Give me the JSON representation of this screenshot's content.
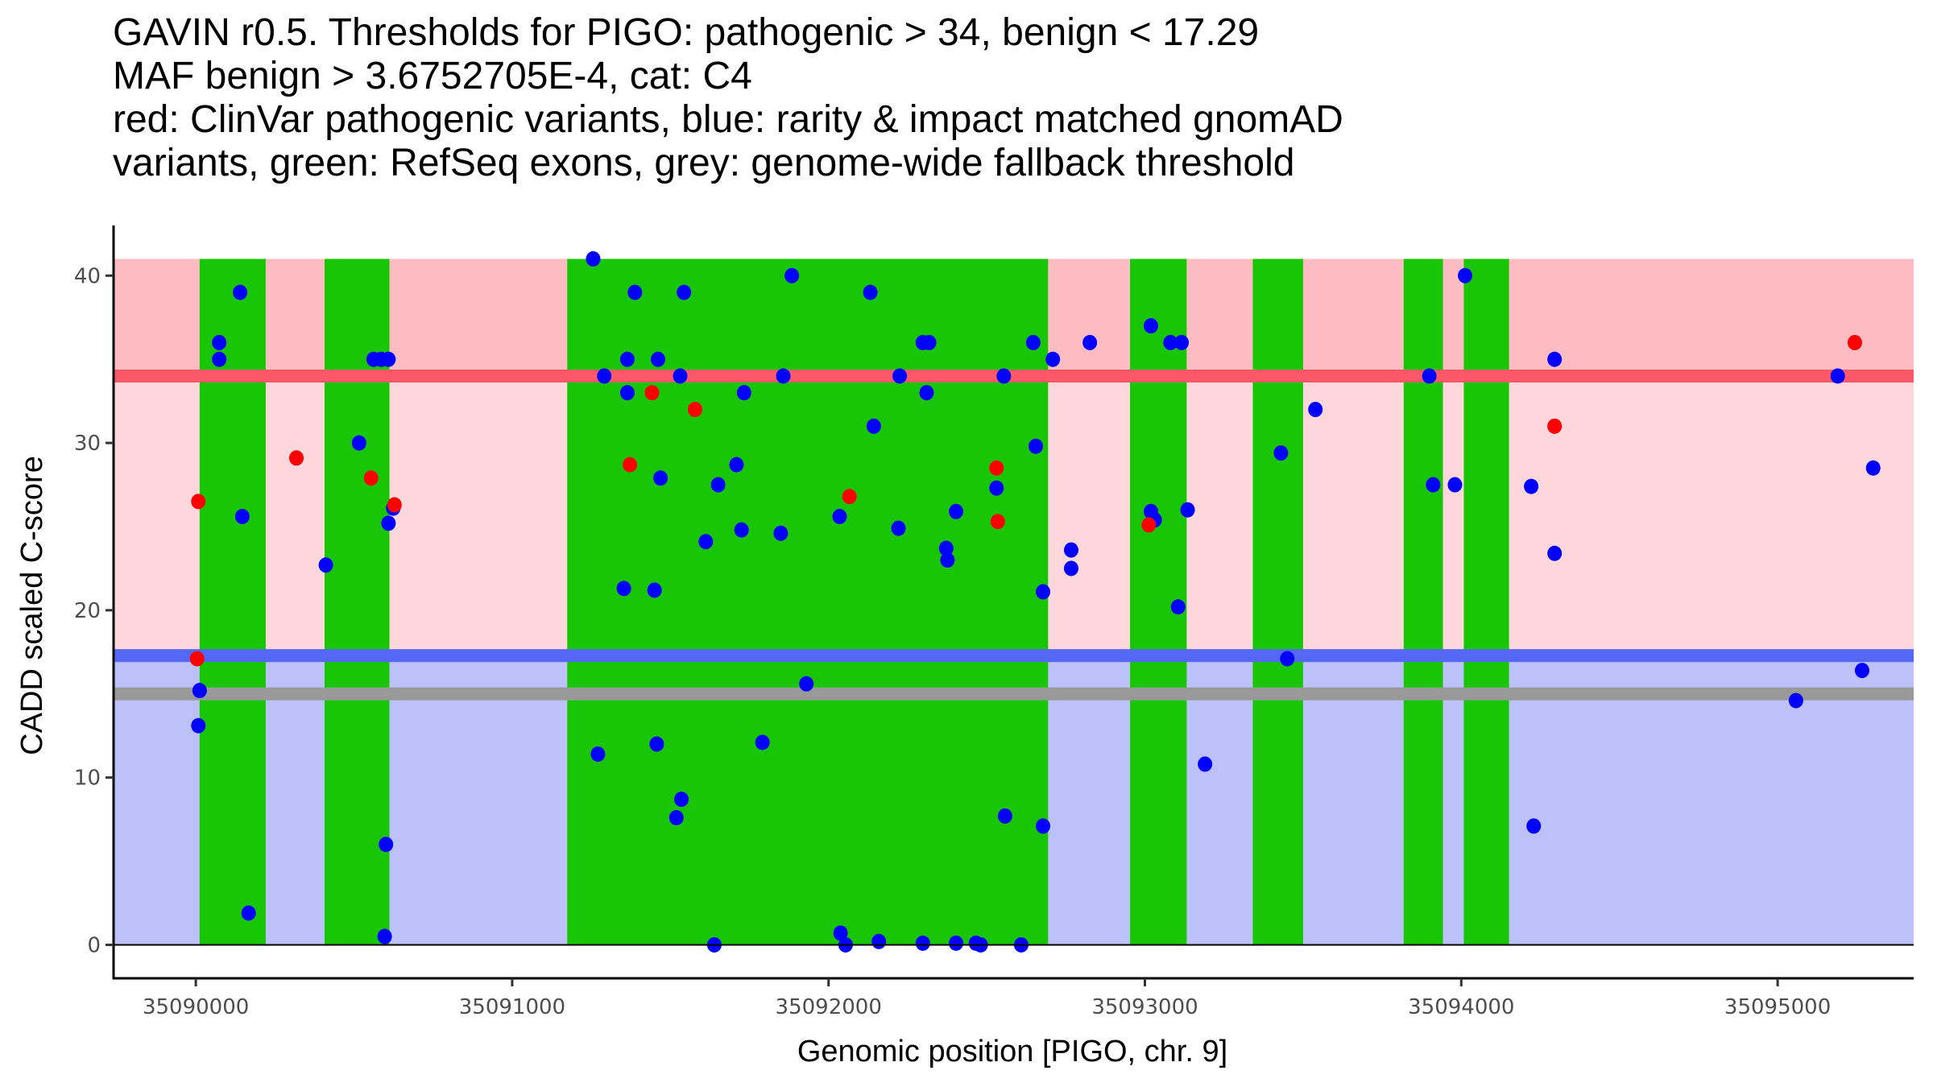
{
  "title_lines": [
    "GAVIN r0.5. Thresholds for PIGO: pathogenic > 34, benign < 17.29",
    "MAF benign > 3.6752705E-4, cat: C4",
    "red: ClinVar pathogenic variants, blue: rarity & impact matched gnomAD",
    "variants, green: RefSeq exons, grey: genome-wide fallback threshold"
  ],
  "chart_data": {
    "type": "scatter",
    "title": "GAVIN r0.5. Thresholds for PIGO: pathogenic > 34, benign < 17.29 / MAF benign > 3.6752705E-4, cat: C4",
    "xlabel": "Genomic position [PIGO, chr. 9]",
    "ylabel": "CADD scaled C-score",
    "xlim": [
      35089740,
      35095430
    ],
    "ylim": [
      -2,
      43
    ],
    "x_ticks": [
      35090000,
      35091000,
      35092000,
      35093000,
      35094000,
      35095000
    ],
    "x_tick_labels": [
      "35090000",
      "35091000",
      "35092000",
      "35093000",
      "35094000",
      "35095000"
    ],
    "y_ticks": [
      0,
      10,
      20,
      30,
      40
    ],
    "y_tick_labels": [
      "0",
      "10",
      "20",
      "30",
      "40"
    ],
    "grid": false,
    "colors": {
      "pathogenic_zone": "#fdbcc1",
      "vous_zone": "#fdd7dc",
      "benign_zone": "#bcc1fa",
      "pathogenic_line": "#fc5868",
      "benign_line": "#5467f5",
      "fallback_line": "#999999",
      "exon": "#19c605",
      "clinvar_point": "#ff0000",
      "gnomad_point": "#0000ff"
    },
    "thresholds": {
      "pathogenic": 34,
      "benign": 17.29,
      "fallback": 15,
      "zone_top": 41
    },
    "exons": [
      [
        35090012,
        35090221
      ],
      [
        35090407,
        35090612
      ],
      [
        35091174,
        35092694
      ],
      [
        35092953,
        35093132
      ],
      [
        35093341,
        35093500
      ],
      [
        35093818,
        35093942
      ],
      [
        35094008,
        35094151
      ]
    ],
    "series": [
      {
        "name": "gnomAD",
        "points": [
          [
            35090012,
            15.2
          ],
          [
            35090008,
            13.1
          ],
          [
            35090074,
            36.0
          ],
          [
            35090074,
            35.0
          ],
          [
            35090140,
            39.0
          ],
          [
            35090147,
            25.6
          ],
          [
            35090167,
            1.9
          ],
          [
            35090411,
            22.7
          ],
          [
            35090516,
            30.0
          ],
          [
            35090562,
            35.0
          ],
          [
            35090586,
            35.0
          ],
          [
            35090609,
            35.0
          ],
          [
            35090609,
            25.2
          ],
          [
            35090624,
            26.1
          ],
          [
            35090601,
            6.0
          ],
          [
            35090597,
            0.5
          ],
          [
            35091256,
            41.0
          ],
          [
            35091271,
            11.4
          ],
          [
            35091291,
            34.0
          ],
          [
            35091353,
            21.3
          ],
          [
            35091364,
            33.0
          ],
          [
            35091364,
            35.0
          ],
          [
            35091388,
            39.0
          ],
          [
            35091450,
            21.2
          ],
          [
            35091457,
            12.0
          ],
          [
            35091461,
            35.0
          ],
          [
            35091469,
            27.9
          ],
          [
            35091519,
            7.6
          ],
          [
            35091535,
            8.7
          ],
          [
            35091531,
            34.0
          ],
          [
            35091543,
            39.0
          ],
          [
            35091612,
            24.1
          ],
          [
            35091651,
            27.5
          ],
          [
            35091639,
            0.0
          ],
          [
            35091709,
            28.7
          ],
          [
            35091725,
            24.8
          ],
          [
            35091733,
            33.0
          ],
          [
            35091791,
            12.1
          ],
          [
            35091849,
            24.6
          ],
          [
            35091857,
            34.0
          ],
          [
            35091884,
            40.0
          ],
          [
            35091930,
            15.6
          ],
          [
            35092035,
            25.6
          ],
          [
            35092038,
            0.7
          ],
          [
            35092054,
            0.0
          ],
          [
            35092132,
            39.0
          ],
          [
            35092143,
            31.0
          ],
          [
            35092159,
            0.2
          ],
          [
            35092225,
            34.0
          ],
          [
            35092221,
            24.9
          ],
          [
            35092298,
            0.1
          ],
          [
            35092298,
            36.0
          ],
          [
            35092318,
            36.0
          ],
          [
            35092310,
            33.0
          ],
          [
            35092372,
            23.7
          ],
          [
            35092376,
            23.0
          ],
          [
            35092403,
            25.9
          ],
          [
            35092403,
            0.1
          ],
          [
            35092466,
            0.1
          ],
          [
            35092481,
            0.0
          ],
          [
            35092531,
            27.3
          ],
          [
            35092554,
            34.0
          ],
          [
            35092558,
            7.7
          ],
          [
            35092609,
            0.0
          ],
          [
            35092647,
            36.0
          ],
          [
            35092655,
            29.8
          ],
          [
            35092678,
            21.1
          ],
          [
            35092678,
            7.1
          ],
          [
            35092709,
            35.0
          ],
          [
            35092767,
            23.6
          ],
          [
            35092767,
            22.5
          ],
          [
            35092826,
            36.0
          ],
          [
            35093019,
            37.0
          ],
          [
            35093031,
            25.4
          ],
          [
            35093019,
            25.9
          ],
          [
            35093081,
            36.0
          ],
          [
            35093116,
            36.0
          ],
          [
            35093105,
            20.2
          ],
          [
            35093135,
            26.0
          ],
          [
            35093190,
            10.8
          ],
          [
            35093430,
            29.4
          ],
          [
            35093450,
            17.1
          ],
          [
            35093539,
            32.0
          ],
          [
            35093899,
            34.0
          ],
          [
            35093911,
            27.5
          ],
          [
            35093980,
            27.5
          ],
          [
            35094012,
            40.0
          ],
          [
            35094221,
            27.4
          ],
          [
            35094229,
            7.1
          ],
          [
            35094295,
            35.0
          ],
          [
            35094295,
            23.4
          ],
          [
            35095058,
            14.6
          ],
          [
            35095190,
            34.0
          ],
          [
            35095267,
            16.4
          ],
          [
            35095302,
            28.5
          ]
        ]
      },
      {
        "name": "ClinVar",
        "points": [
          [
            35090008,
            26.5
          ],
          [
            35090004,
            17.1
          ],
          [
            35090318,
            29.1
          ],
          [
            35090554,
            27.9
          ],
          [
            35090628,
            26.3
          ],
          [
            35091372,
            28.7
          ],
          [
            35091442,
            33.0
          ],
          [
            35091578,
            32.0
          ],
          [
            35092066,
            26.8
          ],
          [
            35092531,
            28.5
          ],
          [
            35092535,
            25.3
          ],
          [
            35093012,
            25.1
          ],
          [
            35094295,
            31.0
          ],
          [
            35095244,
            36.0
          ]
        ]
      }
    ]
  }
}
